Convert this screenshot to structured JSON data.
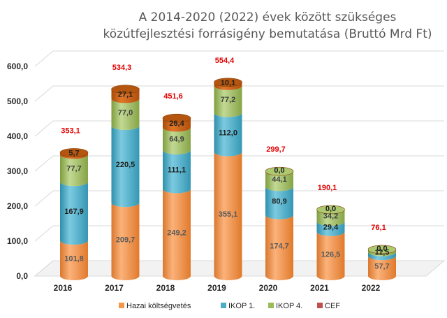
{
  "chart_data": {
    "type": "bar",
    "stacked": true,
    "title": "A 2014-2020 (2022) évek között szükséges közútfejlesztési forrásigény bemutatása (Bruttó Mrd Ft)",
    "title_lines": [
      "A 2014-2020 (2022) évek között szükséges",
      "közútfejlesztési forrásigény bemutatása (Bruttó Mrd Ft)"
    ],
    "categories": [
      "2016",
      "2017",
      "2018",
      "2019",
      "2020",
      "2021",
      "2022"
    ],
    "ylim": [
      0,
      600
    ],
    "yticks": [
      "0,0",
      "100,0",
      "200,0",
      "300,0",
      "400,0",
      "500,0",
      "600,0"
    ],
    "grid": true,
    "legend_position": "bottom",
    "series": [
      {
        "name": "Hazai költségvetés",
        "color": "#F79646",
        "values": [
          101.8,
          209.7,
          249.2,
          355.1,
          174.7,
          126.5,
          57.7
        ],
        "labels": [
          "101,8",
          "209,7",
          "249,2",
          "355,1",
          "174,7",
          "126,5",
          "57,7"
        ]
      },
      {
        "name": "IKOP 1.",
        "color": "#4BACC6",
        "values": [
          167.9,
          220.5,
          111.1,
          112.0,
          80.9,
          29.4,
          11.5
        ],
        "labels": [
          "167,9",
          "220,5",
          "111,1",
          "112,0",
          "80,9",
          "29,4",
          "11,5"
        ]
      },
      {
        "name": "IKOP 4.",
        "color": "#9BBB59",
        "values": [
          77.7,
          77.0,
          64.9,
          77.2,
          44.1,
          34.2,
          6.9
        ],
        "labels": [
          "77,7",
          "77,0",
          "64,9",
          "77,2",
          "44,1",
          "34,2",
          ""
        ]
      },
      {
        "name": "CEF",
        "color": "#C0504D",
        "values": [
          5.7,
          27.1,
          26.4,
          10.1,
          0.0,
          0.0,
          0.0
        ],
        "labels": [
          "5,7",
          "27,1",
          "26,4",
          "10,1",
          "0,0",
          "0,0",
          "0,0"
        ]
      }
    ],
    "totals": [
      "353,1",
      "534,3",
      "451,6",
      "554,4",
      "299,7",
      "190,1",
      "76,1"
    ]
  }
}
